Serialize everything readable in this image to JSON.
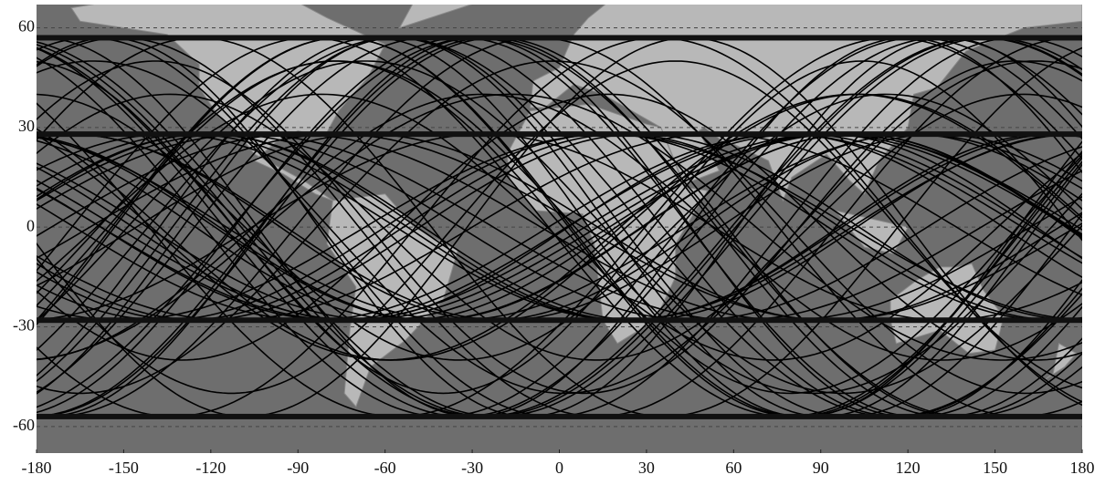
{
  "map": {
    "xlim": [
      -180,
      180
    ],
    "ylim": [
      -68,
      67
    ],
    "xticks": [
      -180,
      -150,
      -120,
      -90,
      -60,
      -30,
      0,
      30,
      60,
      90,
      120,
      150,
      180
    ],
    "yticks": [
      60,
      30,
      0,
      -30,
      -60
    ]
  }
}
